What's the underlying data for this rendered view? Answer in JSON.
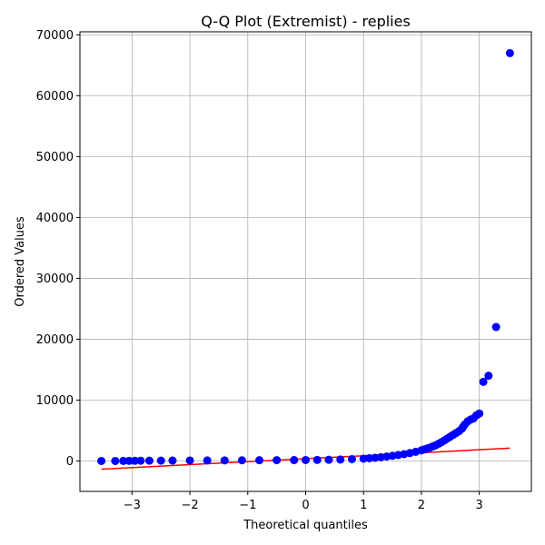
{
  "chart_data": {
    "type": "scatter",
    "title": "Q-Q Plot (Extremist) - replies",
    "xlabel": "Theoretical quantiles",
    "ylabel": "Ordered Values",
    "xlim": [
      -3.9,
      3.9
    ],
    "ylim": [
      -5000,
      70500
    ],
    "xticks": [
      -3,
      -2,
      -1,
      0,
      1,
      2,
      3
    ],
    "yticks": [
      0,
      10000,
      20000,
      30000,
      40000,
      50000,
      60000,
      70000
    ],
    "grid": true,
    "points_color": "#0000ff",
    "line_color": "#ff0000",
    "fit_line": {
      "x": [
        -3.53,
        3.53
      ],
      "y": [
        -1350,
        2100
      ]
    },
    "points": {
      "x": [
        -3.53,
        -3.29,
        -3.15,
        -3.05,
        -2.95,
        -2.85,
        -2.7,
        -2.5,
        -2.3,
        -2.0,
        -1.7,
        -1.4,
        -1.1,
        -0.8,
        -0.5,
        -0.2,
        0.0,
        0.2,
        0.4,
        0.6,
        0.8,
        1.0,
        1.1,
        1.2,
        1.3,
        1.4,
        1.5,
        1.6,
        1.7,
        1.8,
        1.9,
        2.0,
        2.05,
        2.1,
        2.15,
        2.2,
        2.25,
        2.3,
        2.35,
        2.4,
        2.45,
        2.5,
        2.55,
        2.6,
        2.65,
        2.7,
        2.72,
        2.75,
        2.8,
        2.85,
        2.9,
        2.95,
        3.0,
        3.07,
        3.16,
        3.29,
        3.53
      ],
      "y": [
        0,
        0,
        10,
        20,
        30,
        40,
        50,
        60,
        70,
        80,
        90,
        100,
        110,
        120,
        130,
        140,
        150,
        170,
        200,
        240,
        300,
        380,
        450,
        520,
        620,
        730,
        850,
        980,
        1120,
        1300,
        1500,
        1750,
        1900,
        2050,
        2200,
        2400,
        2600,
        2850,
        3100,
        3400,
        3700,
        4000,
        4300,
        4600,
        4900,
        5300,
        5600,
        6000,
        6500,
        6800,
        7000,
        7500,
        7800,
        13000,
        14000,
        22000,
        67000
      ]
    }
  }
}
